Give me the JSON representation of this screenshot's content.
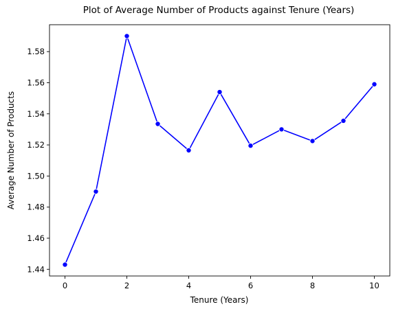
{
  "chart_data": {
    "type": "line",
    "title": "Plot of Average Number of Products against Tenure (Years)",
    "xlabel": "Tenure (Years)",
    "ylabel": "Average Number of Products",
    "x": [
      0,
      1,
      2,
      3,
      4,
      5,
      6,
      7,
      8,
      9,
      10
    ],
    "series": [
      {
        "values": [
          1.443,
          1.49,
          1.59,
          1.5335,
          1.5165,
          1.554,
          1.5195,
          1.53,
          1.5225,
          1.5355,
          1.559
        ],
        "color": "#0000ff",
        "marker": "circle"
      }
    ],
    "xlim": [
      -0.5,
      10.5
    ],
    "ylim": [
      1.4357,
      1.5973
    ],
    "xticks": [
      0,
      2,
      4,
      6,
      8,
      10
    ],
    "xtick_labels": [
      "0",
      "2",
      "4",
      "6",
      "8",
      "10"
    ],
    "yticks": [
      1.44,
      1.46,
      1.48,
      1.5,
      1.52,
      1.54,
      1.56,
      1.58
    ],
    "ytick_labels": [
      "1.44",
      "1.46",
      "1.48",
      "1.50",
      "1.52",
      "1.54",
      "1.56",
      "1.58"
    ],
    "grid": false,
    "legend": "none"
  }
}
